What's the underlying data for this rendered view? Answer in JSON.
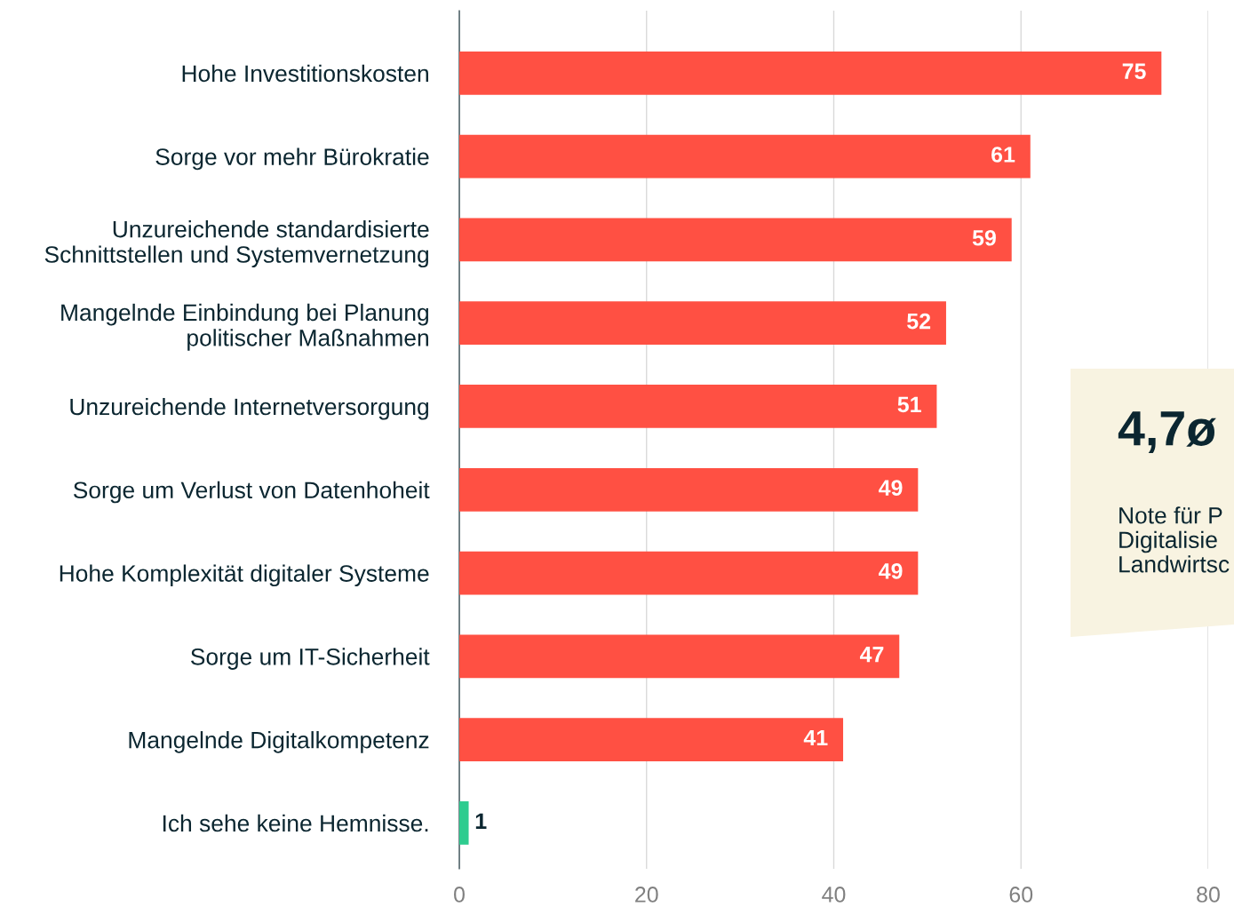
{
  "chart_data": {
    "type": "bar",
    "orientation": "horizontal",
    "categories": [
      "Hohe Investitionskosten",
      "Sorge vor mehr Bürokratie",
      "Unzureichende standardisierte\nSchnittstellen und Systemvernetzung",
      "Mangelnde Einbindung bei Planung\npolitischer Maßnahmen",
      "Unzureichende Internetversorgung",
      "Sorge um Verlust von Datenhoheit",
      "Hohe Komplexität digitaler Systeme",
      "Sorge um IT-Sicherheit",
      "Mangelnde Digitalkompetenz",
      "Ich sehe keine Hemnisse."
    ],
    "values": [
      75,
      61,
      59,
      52,
      51,
      49,
      49,
      47,
      41,
      1
    ],
    "colors": [
      "#ff5043",
      "#ff5043",
      "#ff5043",
      "#ff5043",
      "#ff5043",
      "#ff5043",
      "#ff5043",
      "#ff5043",
      "#ff5043",
      "#2ecc8f"
    ],
    "xlim": [
      0,
      80
    ],
    "xticks": [
      0,
      20,
      40,
      60,
      80
    ],
    "grid": "x",
    "data_labels": true,
    "annotations": [
      "4,7ø",
      "Note für P\nDigitalisie\nLandwirtsc"
    ]
  }
}
